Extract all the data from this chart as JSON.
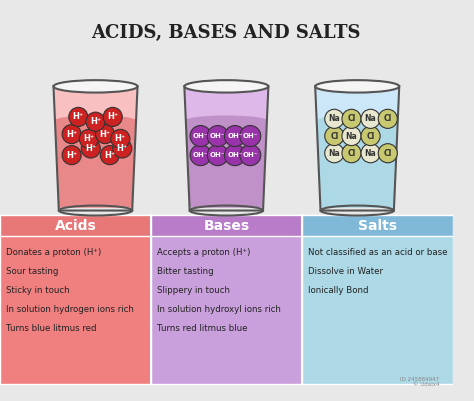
{
  "title": "ACIDS, BASES AND SALTS",
  "background_color": "#e8e8e8",
  "columns": [
    "Acids",
    "Bases",
    "Salts"
  ],
  "column_colors": [
    "#f08080",
    "#c9a0dc",
    "#add8e6"
  ],
  "column_header_colors": [
    "#e06060",
    "#b080c8",
    "#90c0d8"
  ],
  "properties": {
    "Acids": [
      "Donates a proton (H⁺)",
      "Sour tasting",
      "Sticky in touch",
      "In solution hydrogen ions rich",
      "Turns blue litmus red"
    ],
    "Bases": [
      "Accepts a proton (H⁺)",
      "Bitter tasting",
      "Slippery in touch",
      "In solution hydroxyl ions rich",
      "Turns red litmus blue"
    ],
    "Salts": [
      "Not classified as an acid or base",
      "Dissolve in Water",
      "Ionically Bond"
    ]
  },
  "beaker_liquid_colors": [
    "#e88888",
    "#c090c8",
    "#add8e6"
  ],
  "beaker_top_colors": [
    "#f8c0c0",
    "#ddb8e8",
    "#cce8f8"
  ],
  "acid_ball_color": "#cc2222",
  "base_ball_color": "#9933aa",
  "na_ball_color": "#e8e8d0",
  "cl_ball_color": "#c8c870"
}
